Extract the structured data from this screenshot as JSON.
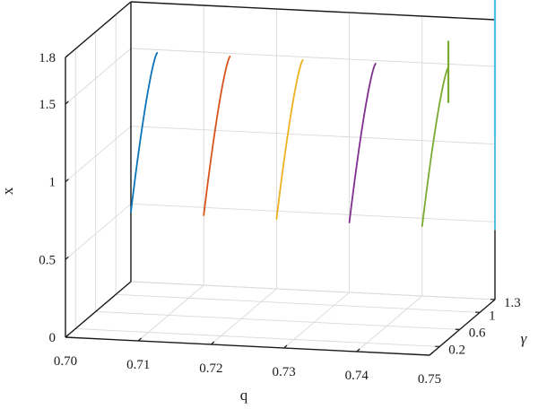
{
  "chart_data": {
    "type": "line",
    "projection": "3d",
    "xlabel": "q",
    "ylabel": "γ",
    "zlabel": "x",
    "xlim": [
      0.7,
      0.75
    ],
    "ylim": [
      0.0,
      1.3
    ],
    "zlim": [
      0,
      1.8
    ],
    "xticks": [
      "0.70",
      "0.71",
      "0.72",
      "0.73",
      "0.74",
      "0.75"
    ],
    "yticks": [
      "0.2",
      "0.6",
      "1",
      "1.3"
    ],
    "zticks": [
      "0",
      "0.5",
      "1",
      "1.5",
      "1.8"
    ],
    "grid": true,
    "series": [
      {
        "color": "#0b72b9",
        "q": 0.7,
        "gamma": 1.3,
        "x_start": 0.45,
        "x_end": 1.48,
        "vertical_segment": null
      },
      {
        "color": "#d9541a",
        "q": 0.71,
        "gamma": 1.3,
        "x_start": 0.45,
        "x_end": 1.48,
        "vertical_segment": null
      },
      {
        "color": "#edb121",
        "q": 0.72,
        "gamma": 1.3,
        "x_start": 0.45,
        "x_end": 1.48,
        "vertical_segment": null
      },
      {
        "color": "#7f2f8e",
        "q": 0.73,
        "gamma": 1.3,
        "x_start": 0.45,
        "x_end": 1.48,
        "vertical_segment": null
      },
      {
        "color": "#78ab2f",
        "q": 0.74,
        "gamma": 1.3,
        "x_start": 0.45,
        "x_end": 1.48,
        "vertical_segment": [
          1.25,
          1.65
        ]
      },
      {
        "color": "#4dbfee",
        "q": 0.75,
        "gamma": 1.3,
        "x_start": 0.45,
        "x_end": 1.48,
        "vertical_segment": [
          1.05,
          1.95
        ]
      }
    ]
  }
}
